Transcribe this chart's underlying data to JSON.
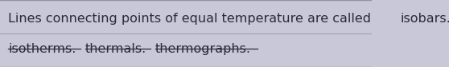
{
  "bg_color": "#c8c8d8",
  "line_color": "#9090a8",
  "text_color": "#2a2a3a",
  "font_size": 11.5,
  "line1_parts": [
    {
      "text": "Lines connecting points of equal temperature are called ",
      "strikethrough": false
    },
    {
      "text": "isobars.",
      "strikethrough": true
    }
  ],
  "line2_parts": [
    {
      "text": "isotherms.",
      "strikethrough": true
    },
    {
      "text": " ",
      "strikethrough": false
    },
    {
      "text": "thermals.",
      "strikethrough": true
    },
    {
      "text": " ",
      "strikethrough": false
    },
    {
      "text": "thermographs.",
      "strikethrough": true
    }
  ],
  "figsize": [
    5.58,
    0.84
  ],
  "dpi": 100
}
